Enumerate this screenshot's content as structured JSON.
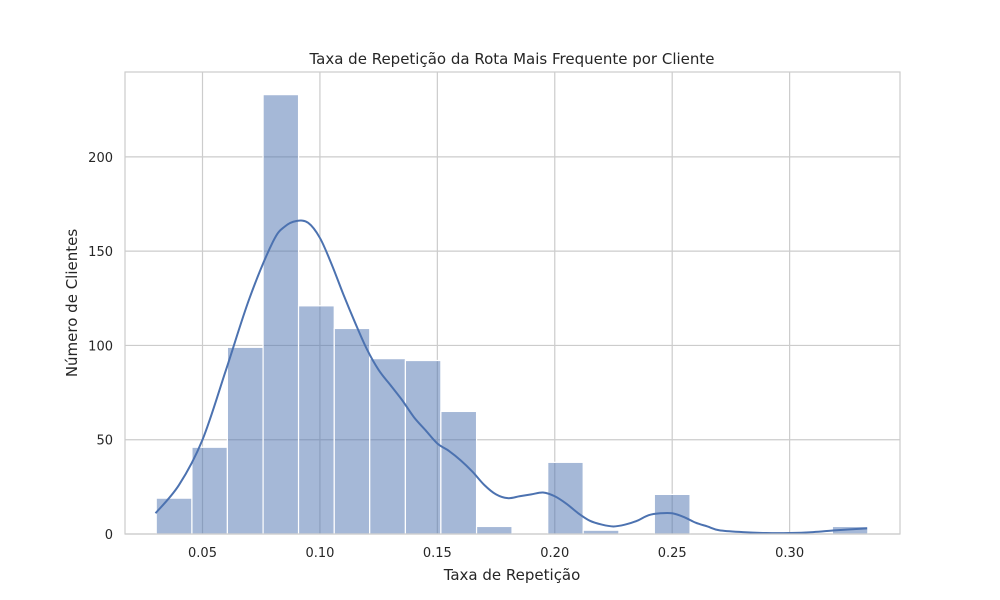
{
  "chart_data": {
    "type": "bar",
    "subtype": "histogram",
    "title": "Taxa de Repetição da Rota Mais Frequente por Cliente",
    "xlabel": "Taxa de Repetição",
    "ylabel": "Número de Clientes",
    "xlim": [
      0.017,
      0.347
    ],
    "ylim": [
      0,
      245
    ],
    "xticks": [
      0.05,
      0.1,
      0.15,
      0.2,
      0.25,
      0.3
    ],
    "xtick_labels": [
      "0.05",
      "0.10",
      "0.15",
      "0.20",
      "0.25",
      "0.30"
    ],
    "yticks": [
      0,
      50,
      100,
      150,
      200
    ],
    "ytick_labels": [
      "0",
      "50",
      "100",
      "150",
      "200"
    ],
    "grid": true,
    "colors": {
      "bar": "#4c72b0",
      "bar_opacity": 0.5,
      "kde": "#4c72b0",
      "grid": "#cccccc"
    },
    "bins": [
      {
        "x0": 0.0303,
        "x1": 0.0455,
        "count": 19
      },
      {
        "x0": 0.0455,
        "x1": 0.0606,
        "count": 46
      },
      {
        "x0": 0.0606,
        "x1": 0.0758,
        "count": 99
      },
      {
        "x0": 0.0758,
        "x1": 0.0909,
        "count": 233
      },
      {
        "x0": 0.0909,
        "x1": 0.1061,
        "count": 121
      },
      {
        "x0": 0.1061,
        "x1": 0.1212,
        "count": 109
      },
      {
        "x0": 0.1212,
        "x1": 0.1364,
        "count": 93
      },
      {
        "x0": 0.1364,
        "x1": 0.1515,
        "count": 92
      },
      {
        "x0": 0.1515,
        "x1": 0.1667,
        "count": 65
      },
      {
        "x0": 0.1667,
        "x1": 0.1818,
        "count": 4
      },
      {
        "x0": 0.1818,
        "x1": 0.197,
        "count": 0
      },
      {
        "x0": 0.197,
        "x1": 0.2121,
        "count": 38
      },
      {
        "x0": 0.2121,
        "x1": 0.2273,
        "count": 2
      },
      {
        "x0": 0.2273,
        "x1": 0.2424,
        "count": 0
      },
      {
        "x0": 0.2424,
        "x1": 0.2576,
        "count": 21
      },
      {
        "x0": 0.2576,
        "x1": 0.2727,
        "count": 0
      },
      {
        "x0": 0.2727,
        "x1": 0.2879,
        "count": 0
      },
      {
        "x0": 0.2879,
        "x1": 0.303,
        "count": 0
      },
      {
        "x0": 0.303,
        "x1": 0.3182,
        "count": 0
      },
      {
        "x0": 0.3182,
        "x1": 0.3333,
        "count": 4
      }
    ],
    "kde": {
      "x": [
        0.03,
        0.04,
        0.05,
        0.06,
        0.07,
        0.08,
        0.085,
        0.09,
        0.095,
        0.1,
        0.105,
        0.11,
        0.115,
        0.12,
        0.125,
        0.13,
        0.135,
        0.14,
        0.145,
        0.15,
        0.155,
        0.16,
        0.165,
        0.17,
        0.175,
        0.18,
        0.185,
        0.19,
        0.195,
        0.2,
        0.205,
        0.21,
        0.215,
        0.22,
        0.225,
        0.23,
        0.235,
        0.24,
        0.245,
        0.25,
        0.255,
        0.26,
        0.265,
        0.27,
        0.28,
        0.29,
        0.3,
        0.31,
        0.32,
        0.333
      ],
      "y": [
        11,
        26,
        50,
        87,
        125,
        155,
        163,
        166,
        165,
        157,
        143,
        127,
        112,
        98,
        87,
        79,
        71,
        62,
        55,
        48,
        44,
        39,
        33,
        26,
        21,
        19,
        20,
        21,
        22,
        20,
        16,
        11,
        7,
        5,
        4,
        5,
        7,
        10,
        11,
        11,
        9,
        6,
        4,
        2,
        1,
        0.5,
        0.5,
        1,
        2,
        3
      ]
    }
  }
}
